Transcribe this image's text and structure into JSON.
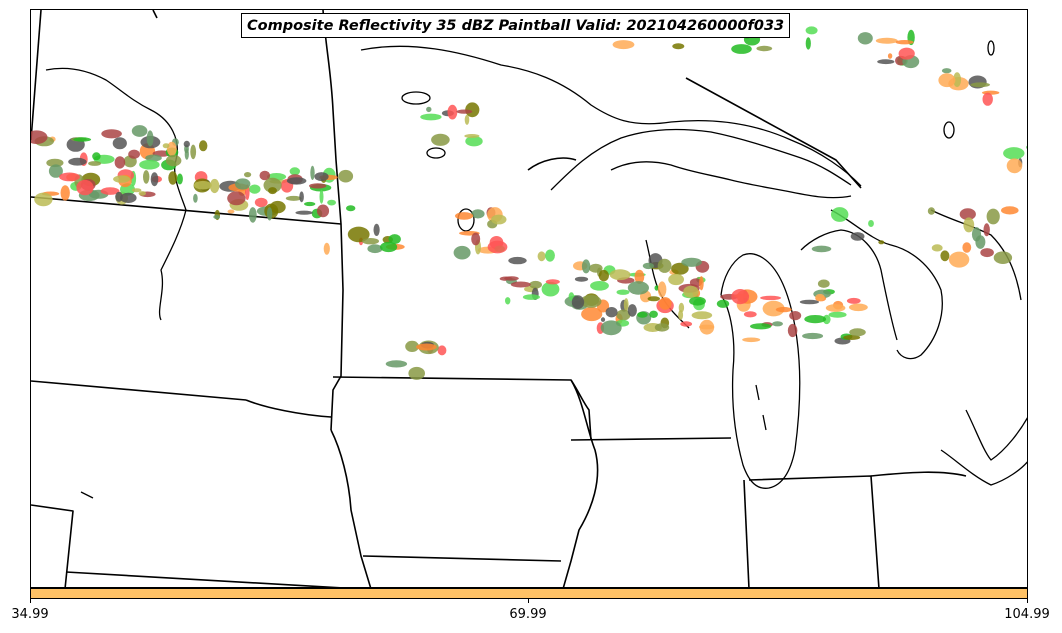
{
  "title": "Composite Reflectivity 35 dBZ Paintball Valid: 202104260000f033",
  "colorbar": {
    "color": "#ffc266",
    "tick_labels": [
      "34.99",
      "69.99",
      "104.99"
    ]
  },
  "chart_data": {
    "type": "map",
    "title": "Composite Reflectivity 35 dBZ Paintball Valid: 202104260000f033",
    "colorbar_ticks": [
      34.99,
      69.99,
      104.99
    ],
    "colorbar_range": [
      34.99,
      104.99
    ],
    "member_colors": [
      "#55dd55",
      "#22bb22",
      "#bbbb55",
      "#889944",
      "#669966",
      "#ff5555",
      "#aa4444",
      "#ff8833",
      "#ffaa55",
      "#555555",
      "#777700"
    ]
  }
}
